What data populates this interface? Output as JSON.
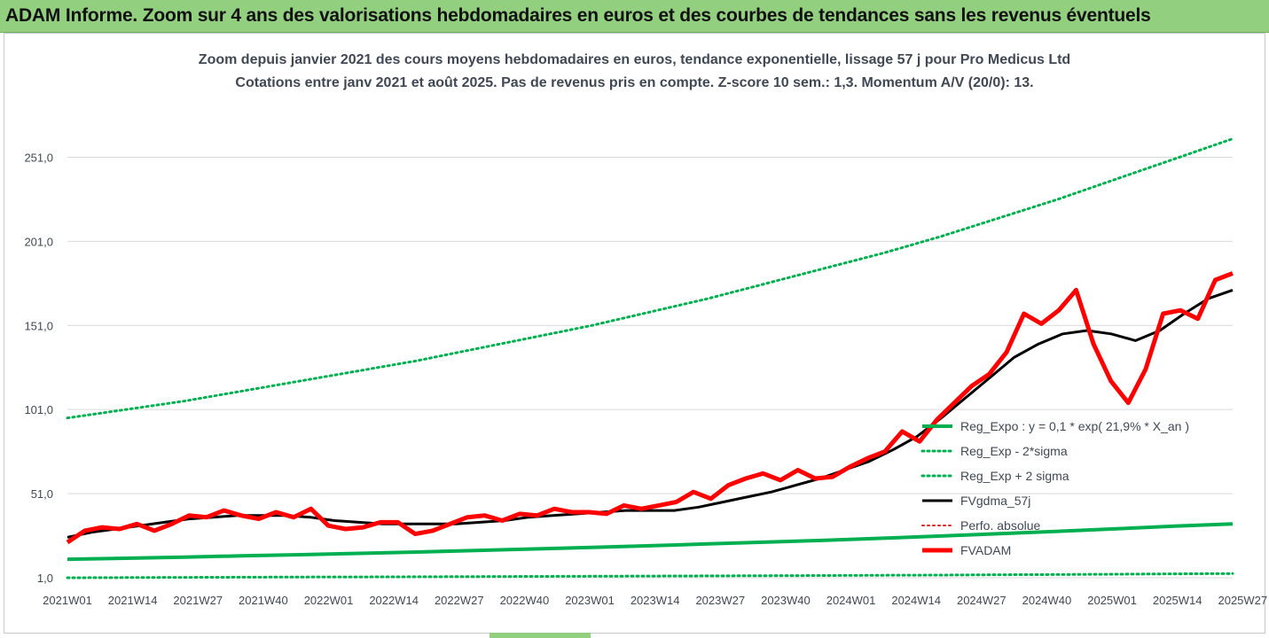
{
  "banner": {
    "title": "ADAM Informe. Zoom sur 4 ans des valorisations hebdomadaires en euros et des courbes de tendances sans les revenus éventuels",
    "color": "#92d080"
  },
  "chart_data": {
    "type": "line",
    "title": "Zoom depuis janvier 2021 des cours moyens hebdomadaires en euros, tendance exponentielle, lissage 57 j pour Pro Medicus Ltd",
    "subtitle": "Cotations entre janv 2021 et août 2025. Pas de revenus pris en compte. Z-score 10 sem.: 1,3. Momentum A/V (20/0): 13.",
    "xlabel": "",
    "ylabel": "",
    "ylim": [
      1,
      276
    ],
    "yticks": [
      "1,0",
      "51,0",
      "101,0",
      "151,0",
      "201,0",
      "251,0"
    ],
    "ytick_values": [
      1,
      51,
      101,
      151,
      201,
      251
    ],
    "xticks": [
      "2021W01",
      "2021W14",
      "2021W27",
      "2021W40",
      "2022W01",
      "2022W14",
      "2022W27",
      "2022W40",
      "2023W01",
      "2023W14",
      "2023W27",
      "2023W40",
      "2024W01",
      "2024W14",
      "2024W27",
      "2024W40",
      "2025W01",
      "2025W14",
      "2025W27"
    ],
    "x_start": "2021W01",
    "n_weeks": 233,
    "grid": "horizontal",
    "legend_position": "right",
    "series": [
      {
        "name": "Reg_Expo : y = 0,1 * exp( 21,9% *  X_an )",
        "color": "#00b050",
        "style": "solid",
        "width": 4,
        "values": [
          12,
          12.6,
          13.3,
          14.0,
          14.7,
          15.5,
          16.3,
          17.2,
          18.1,
          19.0,
          20.0,
          21.1,
          22.2,
          23.3,
          24.5,
          25.8,
          27.2,
          28.6,
          30.1,
          31.7,
          33
        ]
      },
      {
        "name": "Reg_Exp - 2*sigma",
        "color": "#00b050",
        "style": "dotted",
        "width": 3,
        "values": [
          1.0,
          1.1,
          1.2,
          1.3,
          1.4,
          1.5,
          1.6,
          1.7,
          1.8,
          1.9,
          2.0,
          2.1,
          2.2,
          2.3,
          2.5,
          2.6,
          2.8,
          2.9,
          3.1,
          3.3,
          3.5
        ]
      },
      {
        "name": "Reg_Exp + 2 sigma",
        "color": "#00b050",
        "style": "dotted",
        "width": 3,
        "values": [
          96,
          101,
          106,
          112,
          118,
          124,
          130,
          137,
          144,
          151,
          159,
          167,
          176,
          185,
          194,
          204,
          215,
          226,
          238,
          250,
          262
        ]
      },
      {
        "name": "FVgdma_57j",
        "color": "#000000",
        "style": "solid",
        "width": 3,
        "values": [
          25,
          28,
          30,
          32,
          34,
          36,
          37,
          38,
          38,
          38,
          37,
          35,
          34,
          33,
          33,
          33,
          33,
          34,
          35,
          37,
          38,
          39,
          40,
          41,
          41,
          41,
          43,
          46,
          49,
          52,
          56,
          60,
          65,
          70,
          77,
          85,
          96,
          108,
          120,
          132,
          140,
          146,
          148,
          146,
          142,
          148,
          158,
          167,
          172
        ]
      },
      {
        "name": "Perfo. absolue",
        "color": "#e81e1e",
        "style": "dotted",
        "width": 2,
        "values": []
      },
      {
        "name": "FVADAM",
        "color": "#ff0000",
        "style": "solid",
        "width": 5,
        "values": [
          22,
          29,
          31,
          30,
          33,
          29,
          33,
          38,
          37,
          41,
          38,
          36,
          40,
          37,
          42,
          32,
          30,
          31,
          34,
          34,
          27,
          29,
          33,
          37,
          38,
          35,
          39,
          38,
          42,
          40,
          40,
          39,
          44,
          42,
          44,
          46,
          52,
          48,
          56,
          60,
          63,
          59,
          65,
          60,
          61,
          67,
          72,
          76,
          88,
          82,
          95,
          105,
          115,
          122,
          135,
          158,
          152,
          160,
          172,
          140,
          118,
          105,
          125,
          158,
          160,
          155,
          178,
          182
        ]
      }
    ]
  }
}
